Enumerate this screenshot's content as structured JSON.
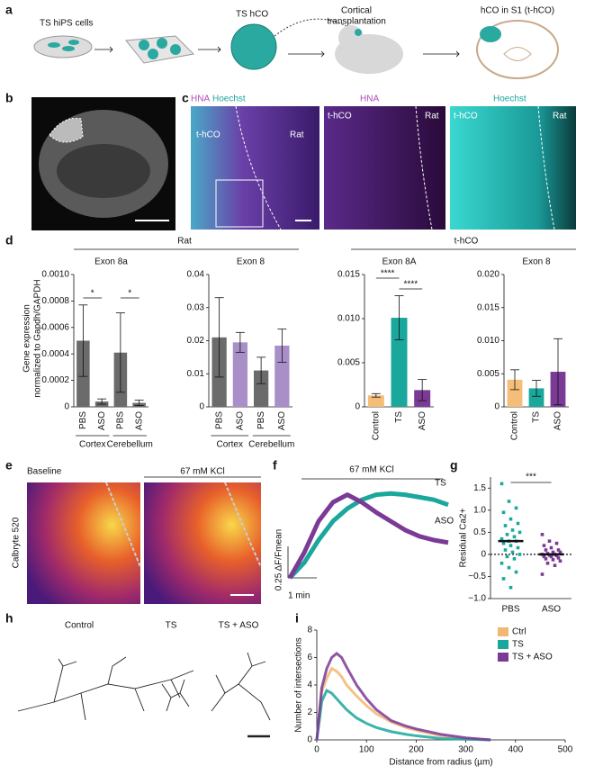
{
  "figure": {
    "panel_labels": [
      "a",
      "b",
      "c",
      "d",
      "e",
      "f",
      "g",
      "h",
      "i"
    ],
    "a": {
      "labels": [
        "TS hiPS cells",
        "TS hCO",
        "Cortical",
        "transplantation",
        "hCO in S1 (t-hCO)"
      ]
    },
    "c": {
      "title_hna": "HNA",
      "title_hoechst": "Hoechst",
      "region_left": "t-hCO",
      "region_right": "Rat"
    },
    "d": {
      "group_rat": "Rat",
      "group_thco": "t-hCO",
      "y_label": [
        "Gene expression",
        "normalized to Gapdh/GAPDH"
      ]
    },
    "e": {
      "baseline": "Baseline",
      "kcl": "67 mM KCl",
      "y_label": "Calbryte 520"
    },
    "f": {
      "kcl": "67 mM KCl",
      "scale_y": "0.25 ΔF/Fmean",
      "scale_x": "1 min"
    },
    "h": {
      "labels": [
        "Control",
        "TS",
        "TS + ASO"
      ]
    }
  },
  "chart_data": [
    {
      "type": "bar",
      "title": "Exon 8a",
      "categories": [
        "PBS",
        "ASO",
        "PBS",
        "ASO"
      ],
      "groups": [
        "Cortex",
        "Cerebellum"
      ],
      "values": [
        0.0005,
        4e-05,
        0.00041,
        3e-05
      ],
      "errors": [
        0.00027,
        2e-05,
        0.0003,
        2e-05
      ],
      "colors": [
        "#6b6b6b",
        "#6b6b6b",
        "#6b6b6b",
        "#6b6b6b"
      ],
      "significance": [
        "*",
        "*"
      ],
      "ylim": [
        0,
        0.001
      ],
      "yticks": [
        0,
        0.0002,
        0.0004,
        0.0006,
        0.0008,
        {
          "value": 0.001,
          "label": "0.0010"
        }
      ]
    },
    {
      "type": "bar",
      "title": "Exon 8",
      "categories": [
        "PBS",
        "ASO",
        "PBS",
        "ASO"
      ],
      "groups": [
        "Cortex",
        "Cerebellum"
      ],
      "values": [
        0.021,
        0.0195,
        0.011,
        0.0185
      ],
      "errors": [
        0.012,
        0.003,
        0.004,
        0.005
      ],
      "colors": [
        "#6b6b6b",
        "#a98fc8",
        "#6b6b6b",
        "#a98fc8"
      ],
      "ylim": [
        0,
        0.04
      ],
      "yticks": [
        0,
        0.01,
        0.02,
        0.03,
        0.04
      ]
    },
    {
      "type": "bar",
      "title": "Exon 8A",
      "categories": [
        "Control",
        "TS",
        "ASO"
      ],
      "values": [
        0.0013,
        0.0101,
        0.0019
      ],
      "errors": [
        0.0002,
        0.0025,
        0.0012
      ],
      "colors": [
        "#f4be78",
        "#1aa79c",
        "#7b3a96"
      ],
      "significance": [
        "****",
        "****"
      ],
      "ylim": [
        0,
        0.015
      ],
      "yticks": [
        0,
        0.005,
        {
          "value": 0.01,
          "label": "0.010"
        },
        0.015
      ]
    },
    {
      "type": "bar",
      "title": "Exon 8",
      "categories": [
        "Control",
        "TS",
        "ASO"
      ],
      "values": [
        0.0041,
        0.0028,
        0.0053
      ],
      "errors": [
        0.0015,
        0.0012,
        0.005
      ],
      "colors": [
        "#f4be78",
        "#1aa79c",
        "#7b3a96"
      ],
      "ylim": [
        0,
        0.02
      ],
      "yticks": [
        0,
        0.005,
        {
          "value": 0.01,
          "label": "0.010"
        },
        0.015,
        {
          "value": 0.02,
          "label": "0.020"
        }
      ]
    },
    {
      "type": "trace",
      "x": [
        0,
        0.5,
        1,
        1.5,
        2,
        2.5,
        3,
        3.5,
        4,
        4.5,
        5,
        5.5
      ],
      "series": [
        {
          "name": "TS",
          "color": "#1aa79c",
          "values": [
            0,
            0.12,
            0.3,
            0.45,
            0.55,
            0.62,
            0.66,
            0.67,
            0.66,
            0.64,
            0.62,
            0.58
          ]
        },
        {
          "name": "ASO",
          "color": "#7b3a96",
          "values": [
            0,
            0.2,
            0.45,
            0.6,
            0.66,
            0.6,
            0.52,
            0.45,
            0.38,
            0.33,
            0.3,
            0.28
          ]
        }
      ]
    },
    {
      "type": "strip",
      "y_label": "Residual Ca2+",
      "categories": [
        "PBS",
        "ASO"
      ],
      "colors": [
        "#1aa79c",
        "#7b3a96"
      ],
      "points": [
        [
          1.6,
          1.2,
          1.05,
          0.95,
          0.8,
          0.7,
          0.65,
          0.55,
          0.5,
          0.45,
          0.4,
          0.35,
          0.3,
          0.3,
          0.25,
          0.2,
          0.15,
          0.1,
          0.05,
          0,
          -0.05,
          -0.1,
          -0.2,
          -0.3,
          -0.4,
          -0.55,
          -0.75
        ],
        [
          0.45,
          0.3,
          0.25,
          0.2,
          0.15,
          0.1,
          0.1,
          0.05,
          0.05,
          0.02,
          0,
          0,
          -0.02,
          -0.03,
          -0.05,
          -0.05,
          -0.08,
          -0.1,
          -0.12,
          -0.15,
          -0.2,
          -0.25,
          -0.45
        ]
      ],
      "means": [
        0.3,
        0
      ],
      "significance": "***",
      "ylim": [
        -1,
        1.75
      ],
      "yticks": [
        {
          "value": -1,
          "label": "−1.0"
        },
        {
          "value": -0.5,
          "label": "−0.5"
        },
        0,
        0.5,
        {
          "value": 1,
          "label": "1.0"
        },
        1.5
      ]
    },
    {
      "type": "line",
      "x_label": "Distance from radius (µm)",
      "y_label": "Number of intersections",
      "x": [
        0,
        10,
        20,
        30,
        40,
        50,
        60,
        80,
        100,
        120,
        150,
        180,
        200,
        250,
        300,
        350
      ],
      "series": [
        {
          "name": "Ctrl",
          "color": "#f2b773",
          "values": [
            0,
            3.5,
            4.5,
            5.2,
            5.0,
            4.6,
            4.0,
            3.2,
            2.5,
            1.9,
            1.3,
            0.9,
            0.7,
            0.3,
            0.1,
            0
          ]
        },
        {
          "name": "TS",
          "color": "#1aa79c",
          "values": [
            0,
            2.8,
            3.6,
            3.4,
            3.0,
            2.6,
            2.2,
            1.6,
            1.2,
            0.9,
            0.6,
            0.4,
            0.3,
            0.1,
            0.05,
            0
          ]
        },
        {
          "name": "TS + ASO",
          "color": "#7b3a96",
          "values": [
            0,
            3.8,
            5.2,
            6.0,
            6.3,
            6.0,
            5.3,
            4.0,
            3.0,
            2.2,
            1.4,
            1.0,
            0.8,
            0.4,
            0.15,
            0
          ]
        }
      ],
      "legend": "upper right",
      "xlim": [
        0,
        500
      ],
      "xticks": [
        0,
        100,
        200,
        300,
        400,
        500
      ],
      "ylim": [
        0,
        8
      ],
      "yticks": [
        0,
        2,
        4,
        6,
        8
      ]
    }
  ]
}
